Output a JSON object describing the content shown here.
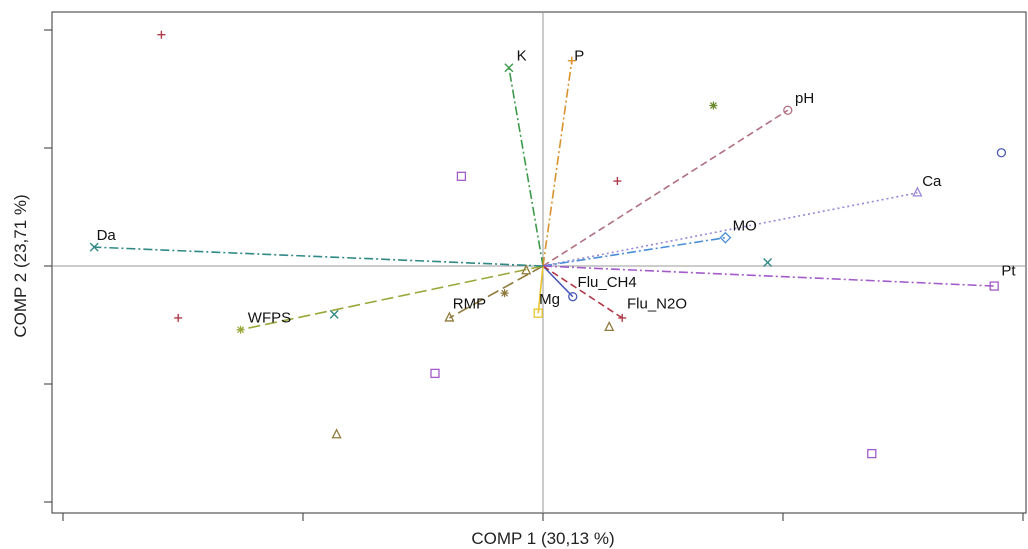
{
  "chart_data": {
    "type": "scatter",
    "subtype": "pca-biplot",
    "xlabel": "COMP 1 (30,13 %)",
    "ylabel": "COMP 2 (23,71 %)",
    "xlim": [
      -1.0,
      1.0
    ],
    "ylim": [
      -1.0,
      1.0
    ],
    "x_ticks": [
      -1.0,
      -0.5,
      0.0,
      0.5,
      1.0
    ],
    "y_ticks": [
      -1.0,
      -0.5,
      0.0,
      0.5,
      1.0
    ],
    "tick_labels_visible": false,
    "reference_lines": {
      "x": 0,
      "y": 0
    },
    "grid": false,
    "legend": "none",
    "vectors": [
      {
        "name": "K",
        "x": -0.071,
        "y": 0.84,
        "color": "#3c9a4a",
        "dash": "dashdot",
        "marker": "x",
        "label_x": -0.055,
        "label_y": 0.87
      },
      {
        "name": "P",
        "x": 0.06,
        "y": 0.87,
        "color": "#d9922e",
        "dash": "dashdot",
        "marker": "plus",
        "label_x": 0.065,
        "label_y": 0.87
      },
      {
        "name": "pH",
        "x": 0.51,
        "y": 0.66,
        "color": "#b0707f",
        "dash": "dashed",
        "marker": "circle",
        "label_x": 0.525,
        "label_y": 0.69
      },
      {
        "name": "Ca",
        "x": 0.78,
        "y": 0.31,
        "color": "#9a86d8",
        "dash": "dotted",
        "marker": "triangle",
        "label_x": 0.79,
        "label_y": 0.34
      },
      {
        "name": "MO",
        "x": 0.38,
        "y": 0.12,
        "color": "#4a8ed6",
        "dash": "dashdot",
        "marker": "diamond",
        "label_x": 0.395,
        "label_y": 0.15
      },
      {
        "name": "Pt",
        "x": 0.94,
        "y": -0.085,
        "color": "#a35cc9",
        "dash": "dashdot",
        "marker": "square",
        "label_x": 0.955,
        "label_y": -0.04
      },
      {
        "name": "Flu_CH4",
        "x": 0.062,
        "y": -0.13,
        "color": "#4a5bb8",
        "dash": "solid",
        "marker": "circle",
        "label_x": 0.072,
        "label_y": -0.09
      },
      {
        "name": "Flu_N2O",
        "x": 0.165,
        "y": -0.22,
        "color": "#b03a4a",
        "dash": "dashed",
        "marker": "plus",
        "label_x": 0.175,
        "label_y": -0.18
      },
      {
        "name": "Mg",
        "x": -0.01,
        "y": -0.2,
        "color": "#e8c530",
        "dash": "solid",
        "marker": "square",
        "label_x": -0.008,
        "label_y": -0.16
      },
      {
        "name": "RMP",
        "x": -0.195,
        "y": -0.22,
        "color": "#8f7a3c",
        "dash": "longdash",
        "marker": "triangle",
        "label_x": -0.188,
        "label_y": -0.18
      },
      {
        "name": "WFPS",
        "x": -0.63,
        "y": -0.27,
        "color": "#9aa83a",
        "dash": "longdash",
        "marker": "star",
        "label_x": -0.615,
        "label_y": -0.24
      },
      {
        "name": "Da",
        "x": -0.935,
        "y": 0.08,
        "color": "#2f8a86",
        "dash": "dashdot",
        "marker": "x",
        "label_x": -0.93,
        "label_y": 0.11
      }
    ],
    "observations": [
      {
        "x": -0.795,
        "y": 0.98,
        "marker": "plus",
        "color": "#b03a4a"
      },
      {
        "x": -0.17,
        "y": 0.38,
        "marker": "square",
        "color": "#a35cc9"
      },
      {
        "x": 0.355,
        "y": 0.68,
        "marker": "star",
        "color": "#6a8a2a"
      },
      {
        "x": 0.155,
        "y": 0.36,
        "marker": "plus",
        "color": "#b03a4a"
      },
      {
        "x": 0.955,
        "y": 0.48,
        "marker": "circle",
        "color": "#4a5bb8"
      },
      {
        "x": 0.468,
        "y": 0.015,
        "marker": "x",
        "color": "#2f8a86"
      },
      {
        "x": -0.76,
        "y": -0.22,
        "marker": "plus",
        "color": "#b03a4a"
      },
      {
        "x": -0.435,
        "y": -0.205,
        "marker": "x",
        "color": "#2f8a86"
      },
      {
        "x": -0.035,
        "y": -0.02,
        "marker": "triangle",
        "color": "#8f7a3c"
      },
      {
        "x": -0.08,
        "y": -0.115,
        "marker": "star",
        "color": "#8f7a3c"
      },
      {
        "x": 0.138,
        "y": -0.26,
        "marker": "triangle",
        "color": "#8f7a3c"
      },
      {
        "x": -0.225,
        "y": -0.455,
        "marker": "square",
        "color": "#a35cc9"
      },
      {
        "x": -0.43,
        "y": -0.715,
        "marker": "triangle",
        "color": "#8f7a3c"
      },
      {
        "x": 0.685,
        "y": -0.795,
        "marker": "square",
        "color": "#a35cc9"
      }
    ]
  }
}
